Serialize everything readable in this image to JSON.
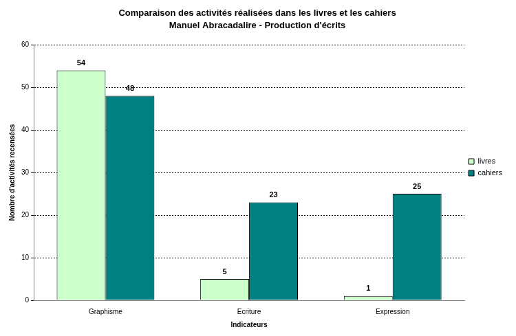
{
  "chart_data": {
    "type": "bar",
    "title": "Comparaison des activités réalisées dans les livres et les cahiers",
    "subtitle": "Manuel Abracadalire - Production d'écrits",
    "x_label": "Indicateurs",
    "y_label": "Nombre d'activités recensées",
    "categories": [
      "Graphisme",
      "Ecriture",
      "Expression"
    ],
    "series": [
      {
        "name": "livres",
        "color": "#ccffcc",
        "values": [
          54,
          5,
          1
        ]
      },
      {
        "name": "cahiers",
        "color": "#008080",
        "values": [
          48,
          23,
          25
        ]
      }
    ],
    "ylim": [
      0,
      60
    ],
    "yticks": [
      0,
      10,
      20,
      30,
      40,
      50,
      60
    ],
    "grid": true,
    "legend": "right",
    "data_labels": true
  }
}
